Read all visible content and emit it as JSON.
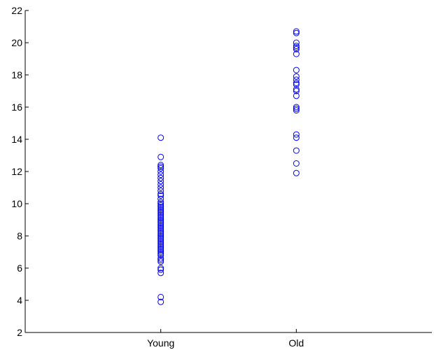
{
  "chart_data": {
    "type": "scatter",
    "title": "",
    "xlabel": "",
    "ylabel": "",
    "categories": [
      "Young",
      "Old"
    ],
    "x_range": [
      0,
      3
    ],
    "ylim": [
      2,
      22
    ],
    "y_ticks": [
      2,
      4,
      6,
      8,
      10,
      12,
      14,
      16,
      18,
      20,
      22
    ],
    "grid": false,
    "marker": "circle-open",
    "color": "#0000ff",
    "series": [
      {
        "category": "Young",
        "values": [
          14.1,
          12.9,
          12.4,
          12.3,
          12.2,
          12.0,
          11.8,
          11.6,
          11.4,
          11.2,
          11.0,
          10.8,
          10.6,
          10.5,
          10.3,
          10.1,
          10.0,
          9.9,
          9.8,
          9.7,
          9.6,
          9.5,
          9.4,
          9.3,
          9.2,
          9.1,
          9.0,
          8.9,
          8.8,
          8.7,
          8.6,
          8.5,
          8.4,
          8.3,
          8.2,
          8.1,
          8.0,
          7.9,
          7.8,
          7.7,
          7.6,
          7.5,
          7.4,
          7.3,
          7.2,
          7.1,
          7.0,
          6.9,
          6.8,
          6.6,
          6.5,
          6.4,
          6.0,
          5.9,
          5.7,
          4.2,
          3.9
        ]
      },
      {
        "category": "Old",
        "values": [
          20.7,
          20.6,
          20.0,
          19.8,
          19.7,
          19.6,
          19.3,
          18.3,
          17.9,
          17.7,
          17.5,
          17.4,
          17.1,
          17.0,
          16.7,
          16.0,
          15.9,
          15.8,
          14.3,
          14.1,
          13.3,
          12.5,
          11.9
        ]
      }
    ]
  }
}
